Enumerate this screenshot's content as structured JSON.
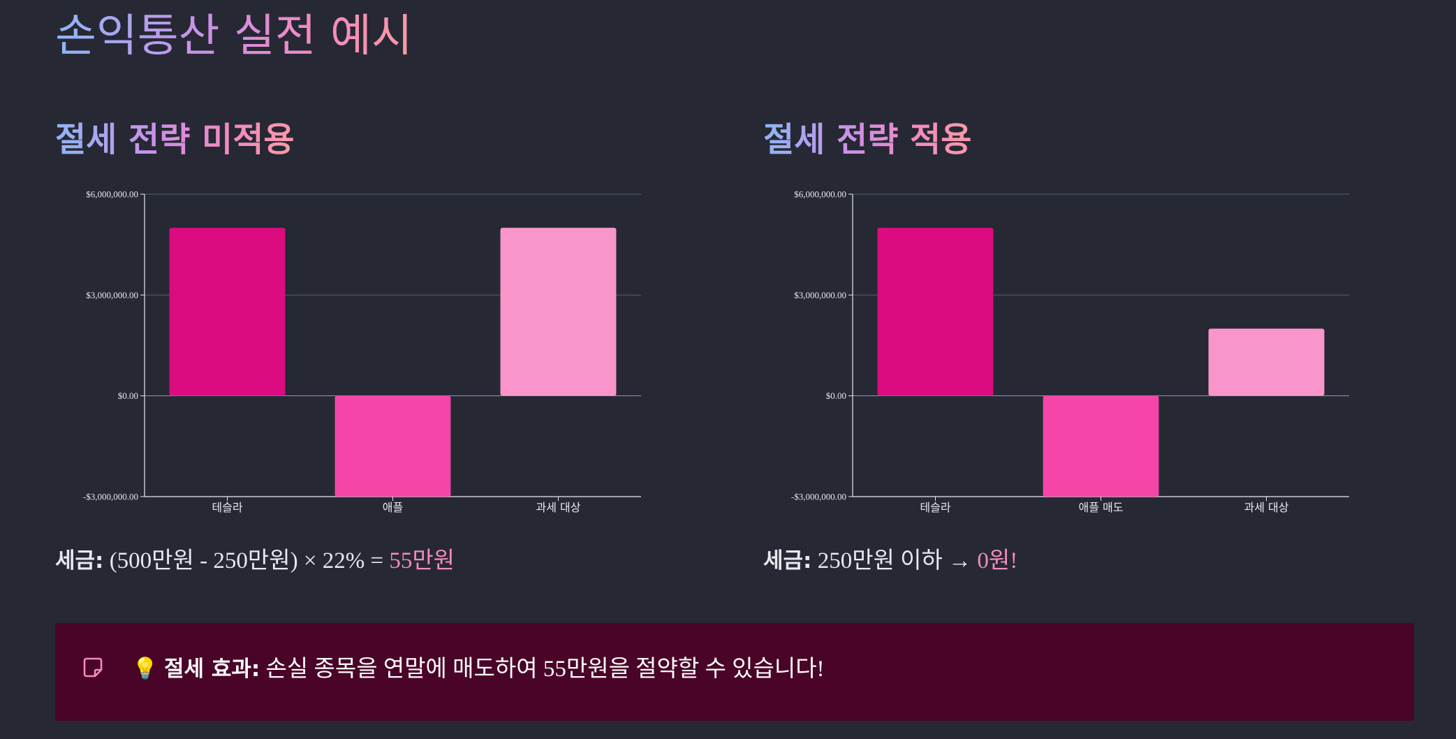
{
  "page": {
    "title": "손익통산 실전 예시"
  },
  "colors": {
    "gain": "#db0b80",
    "loss": "#f545a9",
    "taxable": "#fa95cc",
    "highlight": "#f48bbd"
  },
  "panels": [
    {
      "title": "절세 전략 미적용",
      "tax_label": "세금:",
      "tax_formula": " (500만원 - 250만원) × 22% = ",
      "tax_result": "55만원"
    },
    {
      "title": "절세 전략 적용",
      "tax_label": "세금:",
      "tax_formula": " 250만원 이하 → ",
      "tax_result": "0원!"
    }
  ],
  "chart_data": [
    {
      "type": "bar",
      "title": "절세 전략 미적용",
      "categories": [
        "테슬라",
        "애플",
        "과세 대상"
      ],
      "values": [
        5000000,
        -3000000,
        5000000
      ],
      "ylim": [
        -3000000,
        6000000
      ],
      "yticks": [
        -3000000,
        0,
        3000000,
        6000000
      ],
      "ytick_labels": [
        "-$3,000,000.00",
        "$0.00",
        "$3,000,000.00",
        "$6,000,000.00"
      ],
      "grid": true,
      "xlabel": "",
      "ylabel": ""
    },
    {
      "type": "bar",
      "title": "절세 전략 적용",
      "categories": [
        "테슬라",
        "애플 매도",
        "과세 대상"
      ],
      "values": [
        5000000,
        -3000000,
        2000000
      ],
      "ylim": [
        -3000000,
        6000000
      ],
      "yticks": [
        -3000000,
        0,
        3000000,
        6000000
      ],
      "ytick_labels": [
        "-$3,000,000.00",
        "$0.00",
        "$3,000,000.00",
        "$6,000,000.00"
      ],
      "grid": true,
      "xlabel": "",
      "ylabel": ""
    }
  ],
  "callout": {
    "icon": "note-icon",
    "emoji": "💡",
    "label": "절세 효과:",
    "text": " 손실 종목을 연말에 매도하여 55만원을 절약할 수 있습니다!"
  }
}
